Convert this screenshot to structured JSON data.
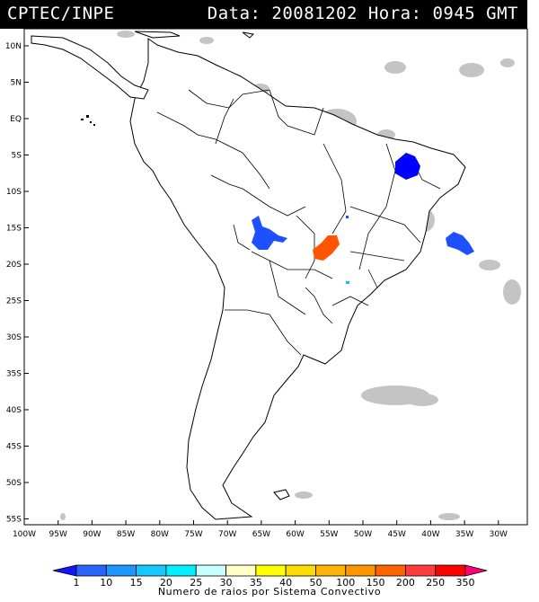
{
  "header": {
    "agency": "CPTEC/INPE",
    "datetime": "Data: 20081202 Hora: 0945 GMT"
  },
  "map": {
    "lat_labels": [
      "10N",
      "5N",
      "EQ",
      "5S",
      "10S",
      "15S",
      "20S",
      "25S",
      "30S",
      "35S",
      "40S",
      "45S",
      "50S",
      "55S"
    ],
    "lon_labels": [
      "100W",
      "95W",
      "90W",
      "85W",
      "80W",
      "75W",
      "70W",
      "65W",
      "60W",
      "55W",
      "50W",
      "45W",
      "40W",
      "35W",
      "30W"
    ],
    "colors": {
      "land_fill": "#ffffff",
      "coastline": "#000000",
      "cloud": "#c4c4c4",
      "system_blue": "#0000ff",
      "system_royal": "#1e50ff",
      "system_orange": "#ff5500",
      "system_cyan": "#00c8ff"
    }
  },
  "legend": {
    "title": "Numero de raios por Sistema Convectivo",
    "labels": [
      "1",
      "10",
      "15",
      "20",
      "25",
      "30",
      "35",
      "40",
      "50",
      "100",
      "150",
      "200",
      "250",
      "350"
    ],
    "colors": [
      "#1414ff",
      "#2864ff",
      "#1e96ff",
      "#14c8ff",
      "#00f0ff",
      "#c8ffff",
      "#ffffc8",
      "#ffff00",
      "#ffdc00",
      "#ffb400",
      "#ff9600",
      "#ff6400",
      "#ff3c3c",
      "#ff0000",
      "#ff0078"
    ]
  }
}
